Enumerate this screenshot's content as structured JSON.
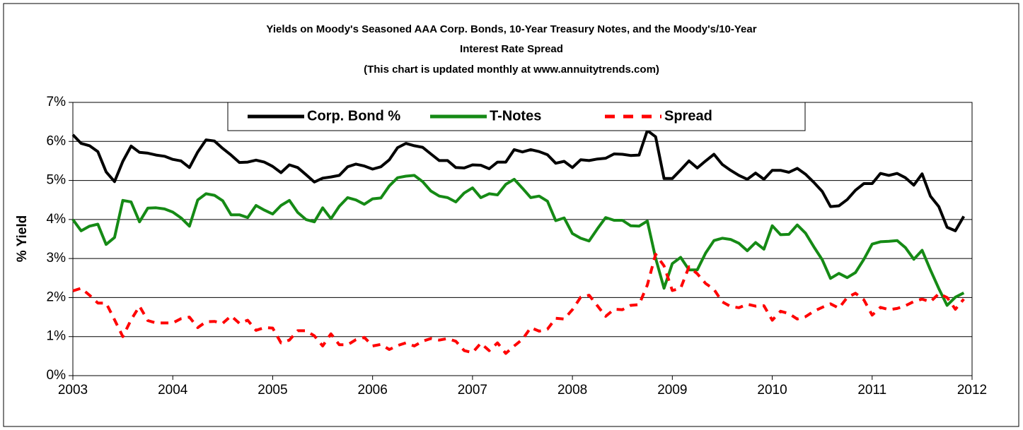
{
  "chart_data": {
    "type": "line",
    "title": [
      "Yields on Moody's Seasoned AAA Corp. Bonds, 10-Year Treasury Notes, and the Moody's/10-Year",
      "Interest Rate Spread",
      "(This chart is updated monthly at www.annuitytrends.com)"
    ],
    "y_label": "% Yield",
    "x": [
      2003,
      2003.083,
      2003.167,
      2003.25,
      2003.333,
      2003.417,
      2003.5,
      2003.583,
      2003.667,
      2003.75,
      2003.833,
      2003.917,
      2004,
      2004.083,
      2004.167,
      2004.25,
      2004.333,
      2004.417,
      2004.5,
      2004.583,
      2004.667,
      2004.75,
      2004.833,
      2004.917,
      2005,
      2005.083,
      2005.167,
      2005.25,
      2005.333,
      2005.417,
      2005.5,
      2005.583,
      2005.667,
      2005.75,
      2005.833,
      2005.917,
      2006,
      2006.083,
      2006.167,
      2006.25,
      2006.333,
      2006.417,
      2006.5,
      2006.583,
      2006.667,
      2006.75,
      2006.833,
      2006.917,
      2007,
      2007.083,
      2007.167,
      2007.25,
      2007.333,
      2007.417,
      2007.5,
      2007.583,
      2007.667,
      2007.75,
      2007.833,
      2007.917,
      2008,
      2008.083,
      2008.167,
      2008.25,
      2008.333,
      2008.417,
      2008.5,
      2008.583,
      2008.667,
      2008.75,
      2008.833,
      2008.917,
      2009,
      2009.083,
      2009.167,
      2009.25,
      2009.333,
      2009.417,
      2009.5,
      2009.583,
      2009.667,
      2009.75,
      2009.833,
      2009.917,
      2010,
      2010.083,
      2010.167,
      2010.25,
      2010.333,
      2010.417,
      2010.5,
      2010.583,
      2010.667,
      2010.75,
      2010.833,
      2010.917,
      2011,
      2011.083,
      2011.167,
      2011.25,
      2011.333,
      2011.417,
      2011.5,
      2011.583,
      2011.667,
      2011.75,
      2011.833,
      2011.917
    ],
    "series": [
      {
        "name": "Corp. Bond %",
        "color": "#000000",
        "dash": false,
        "values": [
          6.17,
          5.95,
          5.89,
          5.74,
          5.22,
          4.97,
          5.49,
          5.88,
          5.72,
          5.7,
          5.65,
          5.62,
          5.54,
          5.5,
          5.33,
          5.73,
          6.04,
          6.01,
          5.82,
          5.65,
          5.46,
          5.47,
          5.52,
          5.47,
          5.36,
          5.2,
          5.4,
          5.33,
          5.15,
          4.96,
          5.06,
          5.09,
          5.13,
          5.35,
          5.42,
          5.37,
          5.29,
          5.35,
          5.53,
          5.84,
          5.95,
          5.89,
          5.85,
          5.68,
          5.51,
          5.51,
          5.33,
          5.32,
          5.4,
          5.39,
          5.3,
          5.47,
          5.47,
          5.79,
          5.73,
          5.79,
          5.74,
          5.66,
          5.44,
          5.49,
          5.33,
          5.53,
          5.51,
          5.55,
          5.57,
          5.68,
          5.67,
          5.64,
          5.65,
          6.28,
          6.12,
          5.05,
          5.05,
          5.27,
          5.5,
          5.32,
          5.5,
          5.67,
          5.41,
          5.26,
          5.13,
          5.03,
          5.19,
          5.03,
          5.26,
          5.26,
          5.21,
          5.31,
          5.16,
          4.95,
          4.72,
          4.33,
          4.35,
          4.51,
          4.75,
          4.92,
          4.92,
          5.18,
          5.13,
          5.18,
          5.07,
          4.88,
          5.17,
          4.6,
          4.33,
          3.8,
          3.71,
          4.08
        ]
      },
      {
        "name": "T-Notes",
        "color": "#158a15",
        "dash": false,
        "values": [
          4.0,
          3.71,
          3.83,
          3.88,
          3.36,
          3.54,
          4.49,
          4.45,
          3.94,
          4.29,
          4.3,
          4.27,
          4.19,
          4.04,
          3.83,
          4.5,
          4.66,
          4.62,
          4.48,
          4.12,
          4.12,
          4.05,
          4.36,
          4.24,
          4.14,
          4.36,
          4.49,
          4.18,
          4.0,
          3.94,
          4.3,
          4.02,
          4.34,
          4.56,
          4.5,
          4.39,
          4.53,
          4.55,
          4.86,
          5.07,
          5.11,
          5.13,
          4.97,
          4.73,
          4.6,
          4.56,
          4.45,
          4.68,
          4.81,
          4.56,
          4.66,
          4.63,
          4.9,
          5.03,
          4.8,
          4.56,
          4.6,
          4.47,
          3.97,
          4.04,
          3.64,
          3.52,
          3.45,
          3.76,
          4.05,
          3.98,
          3.98,
          3.84,
          3.83,
          3.96,
          3.01,
          2.24,
          2.87,
          3.03,
          2.71,
          2.71,
          3.14,
          3.46,
          3.52,
          3.49,
          3.39,
          3.2,
          3.41,
          3.24,
          3.84,
          3.61,
          3.62,
          3.86,
          3.65,
          3.3,
          2.97,
          2.49,
          2.62,
          2.51,
          2.64,
          2.98,
          3.37,
          3.43,
          3.44,
          3.46,
          3.28,
          2.98,
          3.21,
          2.71,
          2.23,
          1.8,
          2.01,
          2.12
        ]
      },
      {
        "name": "Spread",
        "color": "#ff0000",
        "dash": true,
        "values": [
          2.17,
          2.24,
          2.06,
          1.86,
          1.86,
          1.43,
          1.0,
          1.43,
          1.78,
          1.41,
          1.35,
          1.35,
          1.35,
          1.46,
          1.5,
          1.23,
          1.38,
          1.39,
          1.34,
          1.53,
          1.34,
          1.42,
          1.16,
          1.23,
          1.22,
          0.84,
          0.91,
          1.15,
          1.15,
          1.02,
          0.76,
          1.07,
          0.79,
          0.79,
          0.92,
          0.98,
          0.76,
          0.8,
          0.67,
          0.77,
          0.84,
          0.76,
          0.88,
          0.95,
          0.91,
          0.95,
          0.88,
          0.64,
          0.59,
          0.83,
          0.64,
          0.84,
          0.57,
          0.76,
          0.93,
          1.23,
          1.14,
          1.19,
          1.47,
          1.45,
          1.69,
          2.01,
          2.06,
          1.79,
          1.52,
          1.7,
          1.69,
          1.8,
          1.82,
          2.32,
          3.11,
          2.81,
          2.18,
          2.24,
          2.79,
          2.61,
          2.36,
          2.21,
          1.89,
          1.77,
          1.74,
          1.83,
          1.78,
          1.79,
          1.42,
          1.65,
          1.59,
          1.45,
          1.51,
          1.65,
          1.75,
          1.84,
          1.73,
          2.0,
          2.11,
          1.94,
          1.55,
          1.75,
          1.69,
          1.72,
          1.79,
          1.9,
          1.96,
          1.89,
          2.1,
          2.0,
          1.7,
          1.96
        ]
      }
    ],
    "xlim": [
      2003,
      2012
    ],
    "xticks": [
      2003,
      2004,
      2005,
      2006,
      2007,
      2008,
      2009,
      2010,
      2011,
      2012
    ],
    "ylim": [
      0,
      7
    ],
    "yticks": [
      {
        "value": 0,
        "label": "0%"
      },
      {
        "value": 1,
        "label": "1%"
      },
      {
        "value": 2,
        "label": "2%"
      },
      {
        "value": 3,
        "label": "3%"
      },
      {
        "value": 4,
        "label": "4%"
      },
      {
        "value": 5,
        "label": "5%"
      },
      {
        "value": 6,
        "label": "6%"
      },
      {
        "value": 7,
        "label": "7%"
      }
    ],
    "grid": true,
    "legend": "top"
  }
}
